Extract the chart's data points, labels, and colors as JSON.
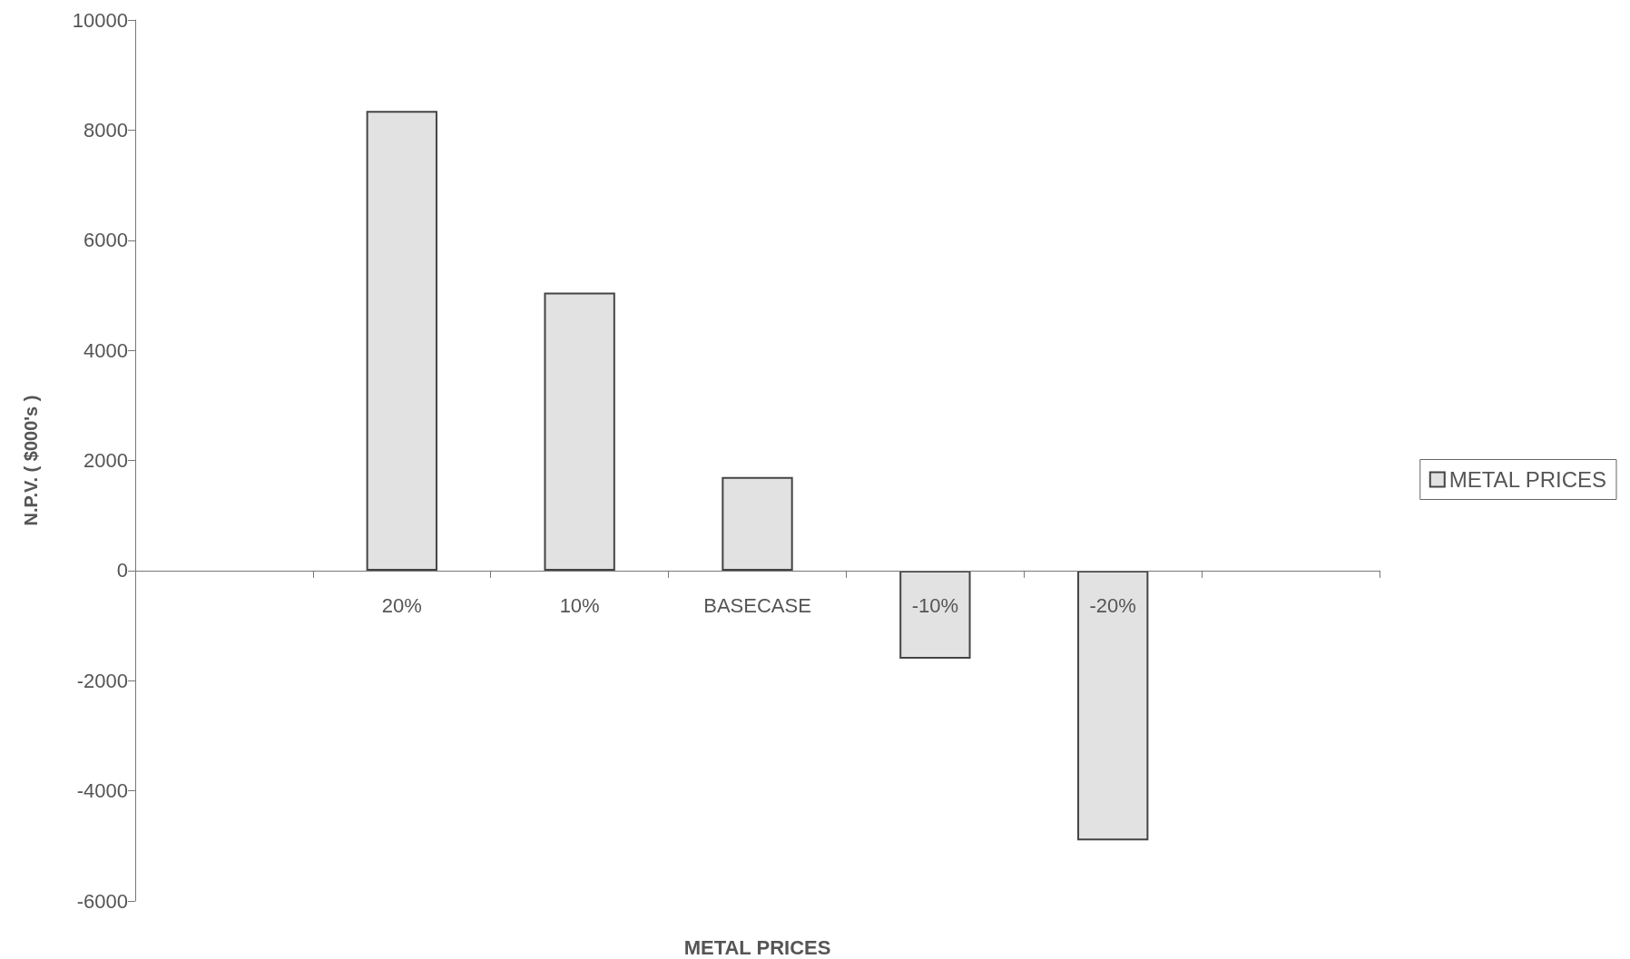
{
  "chart_data": {
    "type": "bar",
    "xlabel": "METAL PRICES",
    "ylabel": "N.P.V. ( $000's )",
    "categories": [
      null,
      "20%",
      "10%",
      "BASECASE",
      "-10%",
      "-20%",
      null
    ],
    "series": [
      {
        "name": "METAL PRICES",
        "color": "#e2e2e2",
        "values": [
          null,
          8350,
          5050,
          1700,
          -1600,
          -4900,
          null
        ]
      }
    ],
    "ylim": [
      -6000,
      10000
    ],
    "yticks": [
      -6000,
      -4000,
      -2000,
      0,
      2000,
      4000,
      6000,
      8000,
      10000
    ],
    "grid": false,
    "legend": "right"
  }
}
